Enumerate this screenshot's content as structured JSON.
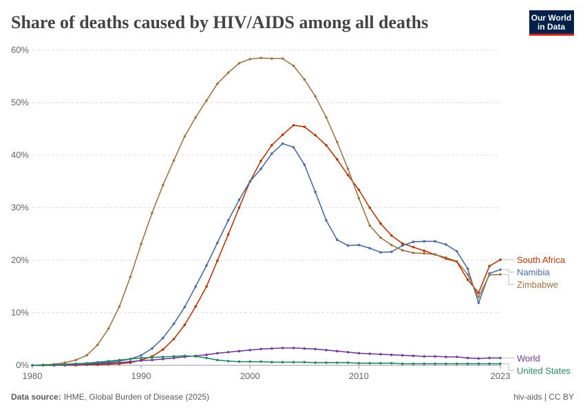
{
  "chart_data": {
    "type": "line",
    "title": "Share of deaths caused by HIV/AIDS among all deaths",
    "logo": [
      "Our World",
      "in Data"
    ],
    "source_label": "Data source:",
    "source": "IHME, Global Burden of Disease (2025)",
    "footer_right": "hiv-aids | CC BY",
    "x": [
      1980,
      1981,
      1982,
      1983,
      1984,
      1985,
      1986,
      1987,
      1988,
      1989,
      1990,
      1991,
      1992,
      1993,
      1994,
      1995,
      1996,
      1997,
      1998,
      1999,
      2000,
      2001,
      2002,
      2003,
      2004,
      2005,
      2006,
      2007,
      2008,
      2009,
      2010,
      2011,
      2012,
      2013,
      2014,
      2015,
      2016,
      2017,
      2018,
      2019,
      2020,
      2021,
      2022,
      2023
    ],
    "xlim": [
      1980,
      2023
    ],
    "xticks": [
      1980,
      1990,
      2000,
      2010,
      2023
    ],
    "ylim": [
      0,
      60
    ],
    "yticks": [
      {
        "value": 0,
        "label": "0%"
      },
      {
        "value": 10,
        "label": "10%"
      },
      {
        "value": 20,
        "label": "20%"
      },
      {
        "value": 30,
        "label": "30%"
      },
      {
        "value": 40,
        "label": "40%"
      },
      {
        "value": 50,
        "label": "50%"
      },
      {
        "value": 60,
        "label": "60%"
      }
    ],
    "grid": true,
    "series": [
      {
        "name": "South Africa",
        "color": "#b13507",
        "values": [
          0,
          0,
          0,
          0,
          0,
          0.1,
          0.1,
          0.2,
          0.3,
          0.5,
          1.0,
          1.7,
          3.0,
          5.0,
          7.7,
          11.2,
          15.0,
          19.9,
          24.9,
          30.0,
          35.0,
          38.9,
          41.9,
          43.9,
          45.7,
          45.4,
          43.8,
          41.9,
          39.2,
          36.2,
          33.4,
          30.0,
          27.0,
          24.7,
          23.2,
          22.5,
          21.8,
          21.1,
          20.3,
          19.7,
          16.3,
          13.8,
          18.9,
          20.1
        ]
      },
      {
        "name": "Namibia",
        "color": "#4c6a9c",
        "values": [
          0,
          0,
          0,
          0.1,
          0.2,
          0.3,
          0.4,
          0.6,
          0.8,
          1.2,
          1.9,
          3.2,
          5.2,
          7.9,
          11.1,
          15.0,
          19.0,
          23.3,
          27.6,
          31.5,
          35.0,
          37.4,
          40.3,
          42.2,
          41.5,
          38.2,
          33.0,
          27.6,
          23.9,
          22.8,
          22.9,
          22.3,
          21.5,
          21.6,
          22.8,
          23.5,
          23.6,
          23.6,
          23.0,
          21.7,
          18.4,
          11.9,
          17.5,
          18.2
        ]
      },
      {
        "name": "Zimbabwe",
        "color": "#9a7545",
        "values": [
          0,
          0.1,
          0.2,
          0.5,
          1.0,
          1.9,
          3.9,
          7.0,
          11.2,
          16.8,
          23.1,
          29.0,
          34.3,
          39.0,
          43.6,
          47.2,
          50.4,
          53.6,
          55.7,
          57.5,
          58.3,
          58.5,
          58.4,
          58.4,
          57.0,
          54.4,
          51.2,
          47.2,
          42.5,
          37.4,
          31.8,
          26.6,
          24.3,
          22.9,
          21.9,
          21.4,
          21.3,
          21.1,
          20.5,
          19.8,
          17.3,
          13.0,
          17.2,
          17.3
        ]
      },
      {
        "name": "World",
        "color": "#6d3e91",
        "values": [
          0,
          0,
          0,
          0.1,
          0.1,
          0.2,
          0.3,
          0.4,
          0.5,
          0.7,
          0.9,
          1.0,
          1.2,
          1.4,
          1.6,
          1.8,
          2.0,
          2.3,
          2.5,
          2.7,
          2.9,
          3.1,
          3.2,
          3.3,
          3.3,
          3.2,
          3.1,
          2.9,
          2.7,
          2.5,
          2.3,
          2.2,
          2.1,
          2.0,
          1.9,
          1.8,
          1.7,
          1.7,
          1.6,
          1.6,
          1.4,
          1.3,
          1.4,
          1.4
        ]
      },
      {
        "name": "United States",
        "color": "#2b8465",
        "values": [
          0,
          0,
          0.1,
          0.2,
          0.3,
          0.4,
          0.6,
          0.8,
          1.0,
          1.2,
          1.4,
          1.5,
          1.6,
          1.7,
          1.8,
          1.7,
          1.4,
          1.0,
          0.8,
          0.7,
          0.7,
          0.7,
          0.6,
          0.6,
          0.6,
          0.6,
          0.5,
          0.5,
          0.5,
          0.5,
          0.4,
          0.4,
          0.4,
          0.4,
          0.3,
          0.3,
          0.3,
          0.3,
          0.3,
          0.3,
          0.3,
          0.3,
          0.3,
          0.3
        ]
      }
    ]
  }
}
